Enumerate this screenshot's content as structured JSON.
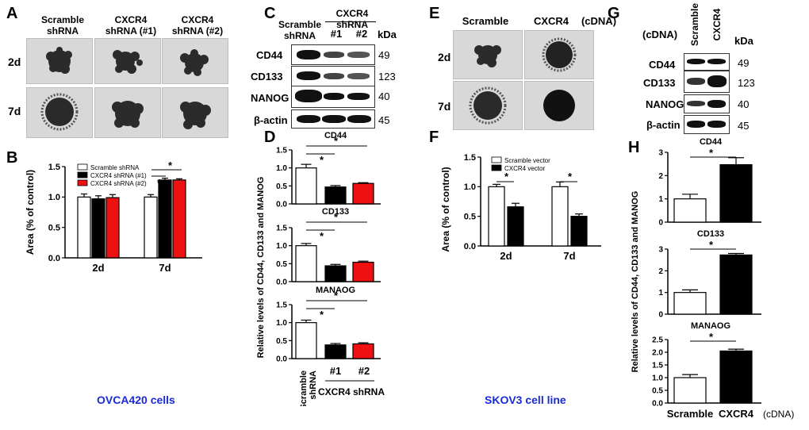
{
  "panels": {
    "A": "A",
    "B": "B",
    "C": "C",
    "D": "D",
    "E": "E",
    "F": "F",
    "G": "G",
    "H": "H"
  },
  "panelA": {
    "headers": [
      "Scramble\nshRNA",
      "CXCR4\nshRNA (#1)",
      "CXCR4\nshRNA (#2)"
    ],
    "rows": [
      "2d",
      "7d"
    ]
  },
  "panelC": {
    "col_scramble": "Scramble\nshRNA",
    "group_label": "CXCR4 shRNA",
    "lanes": [
      "#1",
      "#2"
    ],
    "kda_label": "kDa",
    "blots": [
      {
        "name": "CD44",
        "kda": "49"
      },
      {
        "name": "CD133",
        "kda": "123"
      },
      {
        "name": "NANOG",
        "kda": "40"
      },
      {
        "name": "β-actin",
        "kda": "45"
      }
    ]
  },
  "panelE": {
    "headers": [
      "Scramble",
      "CXCR4"
    ],
    "cdna": "(cDNA)",
    "rows": [
      "2d",
      "7d"
    ]
  },
  "panelG": {
    "cdna": "(cDNA)",
    "lanes": [
      "Scramble",
      "CXCR4"
    ],
    "kda_label": "kDa",
    "blots": [
      {
        "name": "CD44",
        "kda": "49"
      },
      {
        "name": "CD133",
        "kda": "123"
      },
      {
        "name": "NANOG",
        "kda": "40"
      },
      {
        "name": "β-actin",
        "kda": "45"
      }
    ]
  },
  "captions": {
    "left": "OVCA420 cells",
    "right": "SKOV3 cell line"
  },
  "chart_data": [
    {
      "id": "B",
      "type": "bar",
      "categories": [
        "2d",
        "7d"
      ],
      "ylabel": "Area (% of control)",
      "ylim": [
        0,
        1.5
      ],
      "yticks": [
        "0.0",
        "0.5",
        "1.0",
        "1.5"
      ],
      "series": [
        {
          "name": "Scramble shRNA",
          "color": "#ffffff",
          "values": [
            1.0,
            1.0
          ],
          "err": [
            0.05,
            0.04
          ]
        },
        {
          "name": "CXCR4 shRNA (#1)",
          "color": "#000000",
          "values": [
            0.97,
            1.28
          ],
          "err": [
            0.05,
            0.03
          ]
        },
        {
          "name": "CXCR4 shRNA (#2)",
          "color": "#ee1111",
          "values": [
            0.99,
            1.28
          ],
          "err": [
            0.05,
            0.02
          ]
        }
      ],
      "significance": [
        "*",
        "*"
      ]
    },
    {
      "id": "D",
      "type": "bar",
      "ylabel": "Relative levels of CD44, CD133 and MANOG",
      "x_labels": [
        "Scramble\nshRNA",
        "#1",
        "#2"
      ],
      "x_group_label": "CXCR4 shRNA",
      "subplots": [
        {
          "title": "CD44",
          "ylim": [
            0,
            1.5
          ],
          "yticks": [
            "0.0",
            "0.5",
            "1.0",
            "1.5"
          ],
          "values": [
            1.0,
            0.47,
            0.57
          ],
          "err": [
            0.1,
            0.04,
            0.02
          ],
          "colors": [
            "#ffffff",
            "#000000",
            "#ee1111"
          ],
          "significance": [
            "*",
            "*"
          ]
        },
        {
          "title": "CD133",
          "ylim": [
            0,
            1.5
          ],
          "yticks": [
            "0.0",
            "0.5",
            "1.0",
            "1.5"
          ],
          "values": [
            1.0,
            0.44,
            0.54
          ],
          "err": [
            0.06,
            0.04,
            0.03
          ],
          "colors": [
            "#ffffff",
            "#000000",
            "#ee1111"
          ],
          "significance": [
            "*",
            "*"
          ]
        },
        {
          "title": "MANAOG",
          "ylim": [
            0,
            1.5
          ],
          "yticks": [
            "0.0",
            "0.5",
            "1.0",
            "1.5"
          ],
          "values": [
            1.0,
            0.38,
            0.41
          ],
          "err": [
            0.07,
            0.04,
            0.03
          ],
          "colors": [
            "#ffffff",
            "#000000",
            "#ee1111"
          ],
          "significance": [
            "*",
            "*"
          ]
        }
      ]
    },
    {
      "id": "F",
      "type": "bar",
      "categories": [
        "2d",
        "7d"
      ],
      "ylabel": "Area (% of control)",
      "ylim": [
        0,
        1.5
      ],
      "yticks": [
        "0.0",
        "0.5",
        "1.0",
        "1.5"
      ],
      "series": [
        {
          "name": "Scramble vector",
          "color": "#ffffff",
          "values": [
            1.0,
            1.0
          ],
          "err": [
            0.04,
            0.08
          ]
        },
        {
          "name": "CXCR4 vector",
          "color": "#000000",
          "values": [
            0.66,
            0.5
          ],
          "err": [
            0.06,
            0.04
          ]
        }
      ],
      "significance": [
        "*",
        "*"
      ]
    },
    {
      "id": "H",
      "type": "bar",
      "ylabel": "Relative levels of CD44, CD133 and MANOG",
      "x_labels": [
        "Scramble",
        "CXCR4"
      ],
      "x_suffix": "(cDNA)",
      "subplots": [
        {
          "title": "CD44",
          "ylim": [
            0,
            3
          ],
          "yticks": [
            "0",
            "1",
            "2",
            "3"
          ],
          "values": [
            1.0,
            2.47
          ],
          "err": [
            0.2,
            0.3
          ],
          "colors": [
            "#ffffff",
            "#000000"
          ],
          "significance": [
            "*"
          ]
        },
        {
          "title": "CD133",
          "ylim": [
            0,
            3
          ],
          "yticks": [
            "0",
            "1",
            "2",
            "3"
          ],
          "values": [
            1.0,
            2.73
          ],
          "err": [
            0.12,
            0.07
          ],
          "colors": [
            "#ffffff",
            "#000000"
          ],
          "significance": [
            "*"
          ]
        },
        {
          "title": "MANAOG",
          "ylim": [
            0,
            2.5
          ],
          "yticks": [
            "0.0",
            "0.5",
            "1.0",
            "1.5",
            "2.0",
            "2.5"
          ],
          "values": [
            1.0,
            2.05
          ],
          "err": [
            0.12,
            0.07
          ],
          "colors": [
            "#ffffff",
            "#000000"
          ],
          "significance": [
            "*"
          ]
        }
      ]
    }
  ]
}
